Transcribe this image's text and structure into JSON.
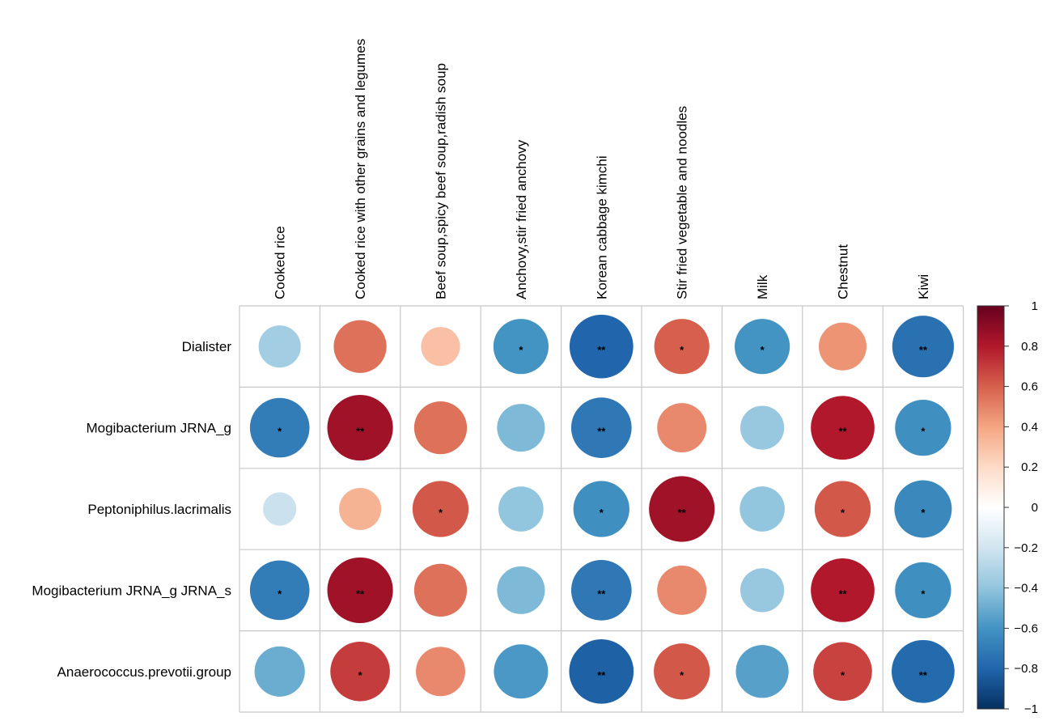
{
  "chart_data": {
    "type": "heatmap",
    "style": "correlation circles",
    "columns": [
      "Cooked rice",
      "Cooked rice with other grains and legumes",
      "Beef soup,spicy beef soup,radish soup",
      "Anchovy,stir fried anchovy",
      "Korean cabbage kimchi",
      "Stir fried vegetable and noodles",
      "Milk",
      "Chestnut",
      "Kiwi"
    ],
    "rows": [
      {
        "name": "Dialister",
        "values": [
          -0.35,
          0.55,
          0.3,
          -0.6,
          -0.8,
          0.6,
          -0.6,
          0.45,
          -0.75
        ],
        "significance": [
          "",
          "",
          "",
          "*",
          "**",
          "*",
          "*",
          "",
          "**"
        ]
      },
      {
        "name": "Mogibacterium JRNA_g",
        "values": [
          -0.7,
          0.85,
          0.55,
          -0.45,
          -0.72,
          0.48,
          -0.38,
          0.8,
          -0.62
        ],
        "significance": [
          "*",
          "**",
          "",
          "",
          "**",
          "",
          "",
          "**",
          "*"
        ]
      },
      {
        "name": "Peptoniphilus.lacrimalis",
        "values": [
          -0.22,
          0.35,
          0.62,
          -0.4,
          -0.62,
          0.85,
          -0.4,
          0.62,
          -0.65
        ],
        "significance": [
          "",
          "",
          "*",
          "",
          "*",
          "**",
          "",
          "*",
          "*"
        ]
      },
      {
        "name": "Mogibacterium JRNA_g JRNA_s",
        "values": [
          -0.7,
          0.85,
          0.55,
          -0.45,
          -0.72,
          0.48,
          -0.38,
          0.8,
          -0.62
        ],
        "significance": [
          "*",
          "**",
          "",
          "",
          "**",
          "",
          "",
          "**",
          "*"
        ]
      },
      {
        "name": "Anaerococcus.prevotii.group",
        "values": [
          -0.5,
          0.7,
          0.48,
          -0.58,
          -0.82,
          0.62,
          -0.55,
          0.68,
          -0.78
        ],
        "significance": [
          "",
          "*",
          "",
          "",
          "**",
          "*",
          "",
          "*",
          "**"
        ]
      }
    ],
    "colorbar": {
      "range": [
        -1,
        1
      ],
      "ticks": [
        1,
        0.8,
        0.6,
        0.4,
        0.2,
        0,
        -0.2,
        -0.4,
        -0.6,
        -0.8,
        -1
      ],
      "tick_labels": [
        "1",
        "0.8",
        "0.6",
        "0.4",
        "0.2",
        "0",
        "−0.2",
        "−0.4",
        "−0.6",
        "−0.8",
        "−1"
      ],
      "colors": [
        "#053061",
        "#2166ac",
        "#4393c3",
        "#92c5de",
        "#d1e5f0",
        "#ffffff",
        "#fddbc7",
        "#f4a582",
        "#d6604d",
        "#b2182b",
        "#67001f"
      ]
    },
    "grid": true,
    "legend_position": "right"
  }
}
